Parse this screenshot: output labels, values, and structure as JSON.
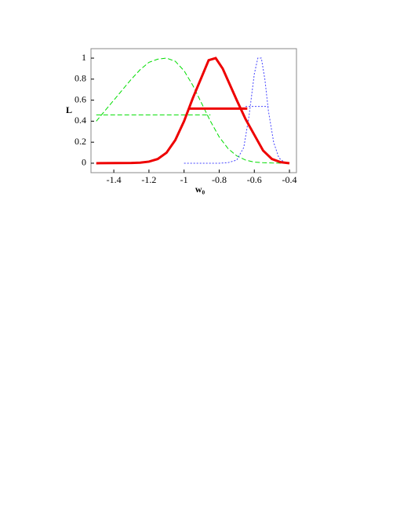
{
  "chart_data": {
    "type": "line",
    "x_label": "w₀",
    "y_label": "L",
    "xlim": [
      -1.53,
      -0.36
    ],
    "ylim": [
      -0.09,
      1.09
    ],
    "xticks": [
      -1.4,
      -1.2,
      -1,
      -0.8,
      -0.6,
      -0.4
    ],
    "yticks": [
      0,
      0.2,
      0.4,
      0.6,
      0.8,
      1
    ],
    "series": [
      {
        "color": "#00dd00",
        "dash": "6,3",
        "width": 1,
        "x": [
          -1.5,
          -1.45,
          -1.4,
          -1.35,
          -1.3,
          -1.25,
          -1.2,
          -1.15,
          -1.1,
          -1.05,
          -1.0,
          -0.95,
          -0.9,
          -0.85,
          -0.8,
          -0.75,
          -0.7,
          -0.65,
          -0.6,
          -0.55,
          -0.5,
          -0.45,
          -0.4
        ],
        "values": [
          0.4,
          0.5,
          0.6,
          0.7,
          0.8,
          0.89,
          0.96,
          0.99,
          1.0,
          0.97,
          0.88,
          0.74,
          0.57,
          0.4,
          0.25,
          0.14,
          0.07,
          0.03,
          0.01,
          0.005,
          0.002,
          0.001,
          0
        ]
      },
      {
        "color": "#00dd00",
        "dash": "6,3",
        "width": 1,
        "x": [
          -1.5,
          -0.85
        ],
        "values": [
          0.46,
          0.46
        ]
      },
      {
        "color": "#4444ff",
        "dash": "2,2",
        "width": 1,
        "x": [
          -1.0,
          -0.8,
          -0.75,
          -0.7,
          -0.66,
          -0.63,
          -0.6,
          -0.58,
          -0.56,
          -0.54,
          -0.52,
          -0.49,
          -0.46,
          -0.43,
          -0.4
        ],
        "values": [
          0,
          0,
          0.005,
          0.03,
          0.15,
          0.45,
          0.85,
          1.0,
          1.0,
          0.8,
          0.5,
          0.2,
          0.05,
          0.01,
          0
        ]
      },
      {
        "color": "#4444ff",
        "dash": "2,2",
        "width": 1,
        "x": [
          -0.65,
          -0.52
        ],
        "values": [
          0.54,
          0.54
        ]
      },
      {
        "color": "#ee0000",
        "dash": "",
        "width": 3,
        "x": [
          -1.5,
          -1.3,
          -1.25,
          -1.2,
          -1.15,
          -1.1,
          -1.05,
          -1.0,
          -0.95,
          -0.9,
          -0.86,
          -0.82,
          -0.78,
          -0.74,
          -0.7,
          -0.65,
          -0.6,
          -0.55,
          -0.5,
          -0.45,
          -0.4
        ],
        "values": [
          0,
          0.002,
          0.005,
          0.015,
          0.04,
          0.1,
          0.22,
          0.4,
          0.62,
          0.82,
          0.98,
          1.0,
          0.9,
          0.75,
          0.6,
          0.42,
          0.27,
          0.12,
          0.04,
          0.01,
          0
        ]
      },
      {
        "color": "#ee0000",
        "dash": "",
        "width": 3,
        "x": [
          -0.97,
          -0.64
        ],
        "values": [
          0.52,
          0.52
        ]
      }
    ]
  }
}
